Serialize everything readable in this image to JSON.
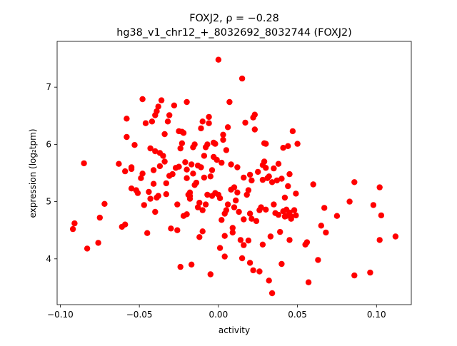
{
  "chart_data": {
    "type": "scatter",
    "title": "FOXJ2, ρ = −0.28",
    "subtitle": "hg38_v1_chr12_+_8032692_8032744 (FOXJ2)",
    "xlabel": "activity",
    "ylabel": "expression (log₂tpm)",
    "xlim": [
      -0.102,
      0.122
    ],
    "ylim": [
      3.2,
      7.8
    ],
    "xticks": [
      -0.1,
      -0.05,
      0.0,
      0.05,
      0.1
    ],
    "xtick_labels": [
      "−0.10",
      "−0.05",
      "0.00",
      "0.05",
      "0.10"
    ],
    "yticks": [
      4,
      5,
      6,
      7
    ],
    "ytick_labels": [
      "4",
      "5",
      "6",
      "7"
    ],
    "grid": false,
    "marker_color": "#ff0000",
    "points": [
      [
        -0.092,
        4.52
      ],
      [
        -0.091,
        4.62
      ],
      [
        -0.085,
        5.67
      ],
      [
        -0.083,
        4.18
      ],
      [
        -0.076,
        4.28
      ],
      [
        -0.075,
        4.72
      ],
      [
        -0.072,
        4.96
      ],
      [
        -0.063,
        5.66
      ],
      [
        -0.061,
        4.56
      ],
      [
        -0.059,
        4.6
      ],
      [
        -0.059,
        5.53
      ],
      [
        -0.058,
        6.13
      ],
      [
        -0.058,
        6.45
      ],
      [
        -0.055,
        5.57
      ],
      [
        -0.055,
        5.6
      ],
      [
        -0.055,
        5.23
      ],
      [
        -0.053,
        5.99
      ],
      [
        -0.052,
        5.2
      ],
      [
        -0.051,
        5.15
      ],
      [
        -0.049,
        5.41
      ],
      [
        -0.048,
        5.49
      ],
      [
        -0.048,
        6.79
      ],
      [
        -0.047,
        4.94
      ],
      [
        -0.046,
        6.37
      ],
      [
        -0.045,
        4.45
      ],
      [
        -0.044,
        5.17
      ],
      [
        -0.043,
        5.05
      ],
      [
        -0.043,
        5.93
      ],
      [
        -0.042,
        6.4
      ],
      [
        -0.041,
        5.31
      ],
      [
        -0.041,
        5.55
      ],
      [
        -0.04,
        4.82
      ],
      [
        -0.04,
        5.88
      ],
      [
        -0.04,
        6.51
      ],
      [
        -0.039,
        6.58
      ],
      [
        -0.039,
        5.07
      ],
      [
        -0.038,
        6.66
      ],
      [
        -0.038,
        5.1
      ],
      [
        -0.037,
        5.62
      ],
      [
        -0.037,
        5.85
      ],
      [
        -0.036,
        6.77
      ],
      [
        -0.035,
        5.8
      ],
      [
        -0.034,
        5.7
      ],
      [
        -0.034,
        6.18
      ],
      [
        -0.033,
        5.13
      ],
      [
        -0.033,
        5.32
      ],
      [
        -0.032,
        6.4
      ],
      [
        -0.031,
        6.51
      ],
      [
        -0.031,
        5.45
      ],
      [
        -0.03,
        4.53
      ],
      [
        -0.029,
        5.48
      ],
      [
        -0.028,
        6.68
      ],
      [
        -0.027,
        5.59
      ],
      [
        -0.026,
        4.95
      ],
      [
        -0.026,
        4.5
      ],
      [
        -0.025,
        5.61
      ],
      [
        -0.025,
        6.23
      ],
      [
        -0.024,
        3.86
      ],
      [
        -0.024,
        5.93
      ],
      [
        -0.023,
        6.22
      ],
      [
        -0.023,
        6.02
      ],
      [
        -0.022,
        6.2
      ],
      [
        -0.022,
        4.75
      ],
      [
        -0.021,
        5.69
      ],
      [
        -0.02,
        6.74
      ],
      [
        -0.02,
        5.41
      ],
      [
        -0.02,
        5.56
      ],
      [
        -0.02,
        4.78
      ],
      [
        -0.019,
        5.12
      ],
      [
        -0.018,
        5.05
      ],
      [
        -0.018,
        5.1
      ],
      [
        -0.018,
        5.16
      ],
      [
        -0.017,
        3.9
      ],
      [
        -0.017,
        5.65
      ],
      [
        -0.016,
        5.95
      ],
      [
        -0.016,
        5.49
      ],
      [
        -0.015,
        6.0
      ],
      [
        -0.015,
        5.29
      ],
      [
        -0.014,
        5.33
      ],
      [
        -0.013,
        4.9
      ],
      [
        -0.013,
        5.63
      ],
      [
        -0.012,
        4.38
      ],
      [
        -0.012,
        4.98
      ],
      [
        -0.011,
        5.6
      ],
      [
        -0.011,
        6.28
      ],
      [
        -0.01,
        6.4
      ],
      [
        -0.01,
        4.48
      ],
      [
        -0.01,
        4.85
      ],
      [
        -0.009,
        5.42
      ],
      [
        -0.009,
        5.8
      ],
      [
        -0.008,
        5.95
      ],
      [
        -0.008,
        4.95
      ],
      [
        -0.007,
        6.0
      ],
      [
        -0.007,
        5.12
      ],
      [
        -0.006,
        6.48
      ],
      [
        -0.006,
        6.37
      ],
      [
        -0.005,
        5.44
      ],
      [
        -0.005,
        3.73
      ],
      [
        -0.004,
        5.1
      ],
      [
        -0.004,
        5.55
      ],
      [
        -0.003,
        5.78
      ],
      [
        -0.003,
        6.03
      ],
      [
        -0.002,
        6.01
      ],
      [
        -0.002,
        5.15
      ],
      [
        -0.001,
        5.73
      ],
      [
        0.0,
        5.12
      ],
      [
        0.0,
        7.48
      ],
      [
        0.001,
        4.19
      ],
      [
        0.001,
        5.06
      ],
      [
        0.002,
        4.68
      ],
      [
        0.002,
        5.68
      ],
      [
        0.003,
        6.17
      ],
      [
        0.003,
        6.08
      ],
      [
        0.004,
        4.4
      ],
      [
        0.004,
        4.04
      ],
      [
        0.004,
        4.79
      ],
      [
        0.005,
        5.9
      ],
      [
        0.005,
        4.85
      ],
      [
        0.006,
        4.95
      ],
      [
        0.006,
        6.3
      ],
      [
        0.007,
        6.74
      ],
      [
        0.008,
        5.21
      ],
      [
        0.008,
        5.65
      ],
      [
        0.009,
        4.54
      ],
      [
        0.009,
        4.46
      ],
      [
        0.01,
        5.25
      ],
      [
        0.01,
        4.9
      ],
      [
        0.011,
        5.02
      ],
      [
        0.012,
        5.6
      ],
      [
        0.012,
        5.16
      ],
      [
        0.013,
        4.82
      ],
      [
        0.014,
        4.33
      ],
      [
        0.015,
        7.15
      ],
      [
        0.015,
        4.01
      ],
      [
        0.016,
        5.42
      ],
      [
        0.016,
        4.69
      ],
      [
        0.016,
        4.24
      ],
      [
        0.017,
        6.38
      ],
      [
        0.018,
        5.12
      ],
      [
        0.019,
        4.32
      ],
      [
        0.019,
        5.2
      ],
      [
        0.02,
        3.93
      ],
      [
        0.02,
        5.47
      ],
      [
        0.02,
        4.79
      ],
      [
        0.021,
        5.37
      ],
      [
        0.021,
        4.7
      ],
      [
        0.022,
        3.8
      ],
      [
        0.022,
        6.47
      ],
      [
        0.023,
        6.52
      ],
      [
        0.023,
        6.26
      ],
      [
        0.024,
        4.66
      ],
      [
        0.025,
        5.52
      ],
      [
        0.026,
        3.78
      ],
      [
        0.026,
        4.85
      ],
      [
        0.027,
        4.9
      ],
      [
        0.028,
        4.25
      ],
      [
        0.028,
        5.64
      ],
      [
        0.028,
        5.38
      ],
      [
        0.029,
        5.7
      ],
      [
        0.029,
        6.02
      ],
      [
        0.03,
        4.86
      ],
      [
        0.03,
        5.59
      ],
      [
        0.03,
        6.01
      ],
      [
        0.031,
        5.41
      ],
      [
        0.032,
        3.62
      ],
      [
        0.032,
        5.44
      ],
      [
        0.033,
        4.39
      ],
      [
        0.034,
        3.4
      ],
      [
        0.034,
        5.34
      ],
      [
        0.035,
        4.95
      ],
      [
        0.035,
        5.58
      ],
      [
        0.036,
        4.8
      ],
      [
        0.037,
        5.37
      ],
      [
        0.038,
        4.77
      ],
      [
        0.038,
        5.66
      ],
      [
        0.039,
        4.47
      ],
      [
        0.04,
        3.91
      ],
      [
        0.04,
        5.4
      ],
      [
        0.041,
        5.94
      ],
      [
        0.041,
        4.83
      ],
      [
        0.042,
        4.74
      ],
      [
        0.042,
        5.07
      ],
      [
        0.043,
        4.75
      ],
      [
        0.043,
        4.86
      ],
      [
        0.044,
        5.27
      ],
      [
        0.044,
        5.97
      ],
      [
        0.045,
        5.48
      ],
      [
        0.045,
        4.81
      ],
      [
        0.045,
        4.33
      ],
      [
        0.046,
        4.7
      ],
      [
        0.046,
        4.74
      ],
      [
        0.047,
        6.23
      ],
      [
        0.048,
        4.85
      ],
      [
        0.049,
        4.76
      ],
      [
        0.049,
        5.14
      ],
      [
        0.05,
        6.01
      ],
      [
        0.055,
        4.25
      ],
      [
        0.056,
        4.29
      ],
      [
        0.057,
        3.59
      ],
      [
        0.06,
        5.3
      ],
      [
        0.063,
        3.98
      ],
      [
        0.065,
        4.58
      ],
      [
        0.067,
        4.89
      ],
      [
        0.068,
        4.46
      ],
      [
        0.075,
        4.75
      ],
      [
        0.083,
        5.0
      ],
      [
        0.086,
        5.34
      ],
      [
        0.086,
        3.71
      ],
      [
        0.096,
        3.76
      ],
      [
        0.098,
        4.94
      ],
      [
        0.102,
        5.25
      ],
      [
        0.102,
        4.33
      ],
      [
        0.103,
        4.76
      ],
      [
        0.112,
        4.39
      ]
    ]
  }
}
